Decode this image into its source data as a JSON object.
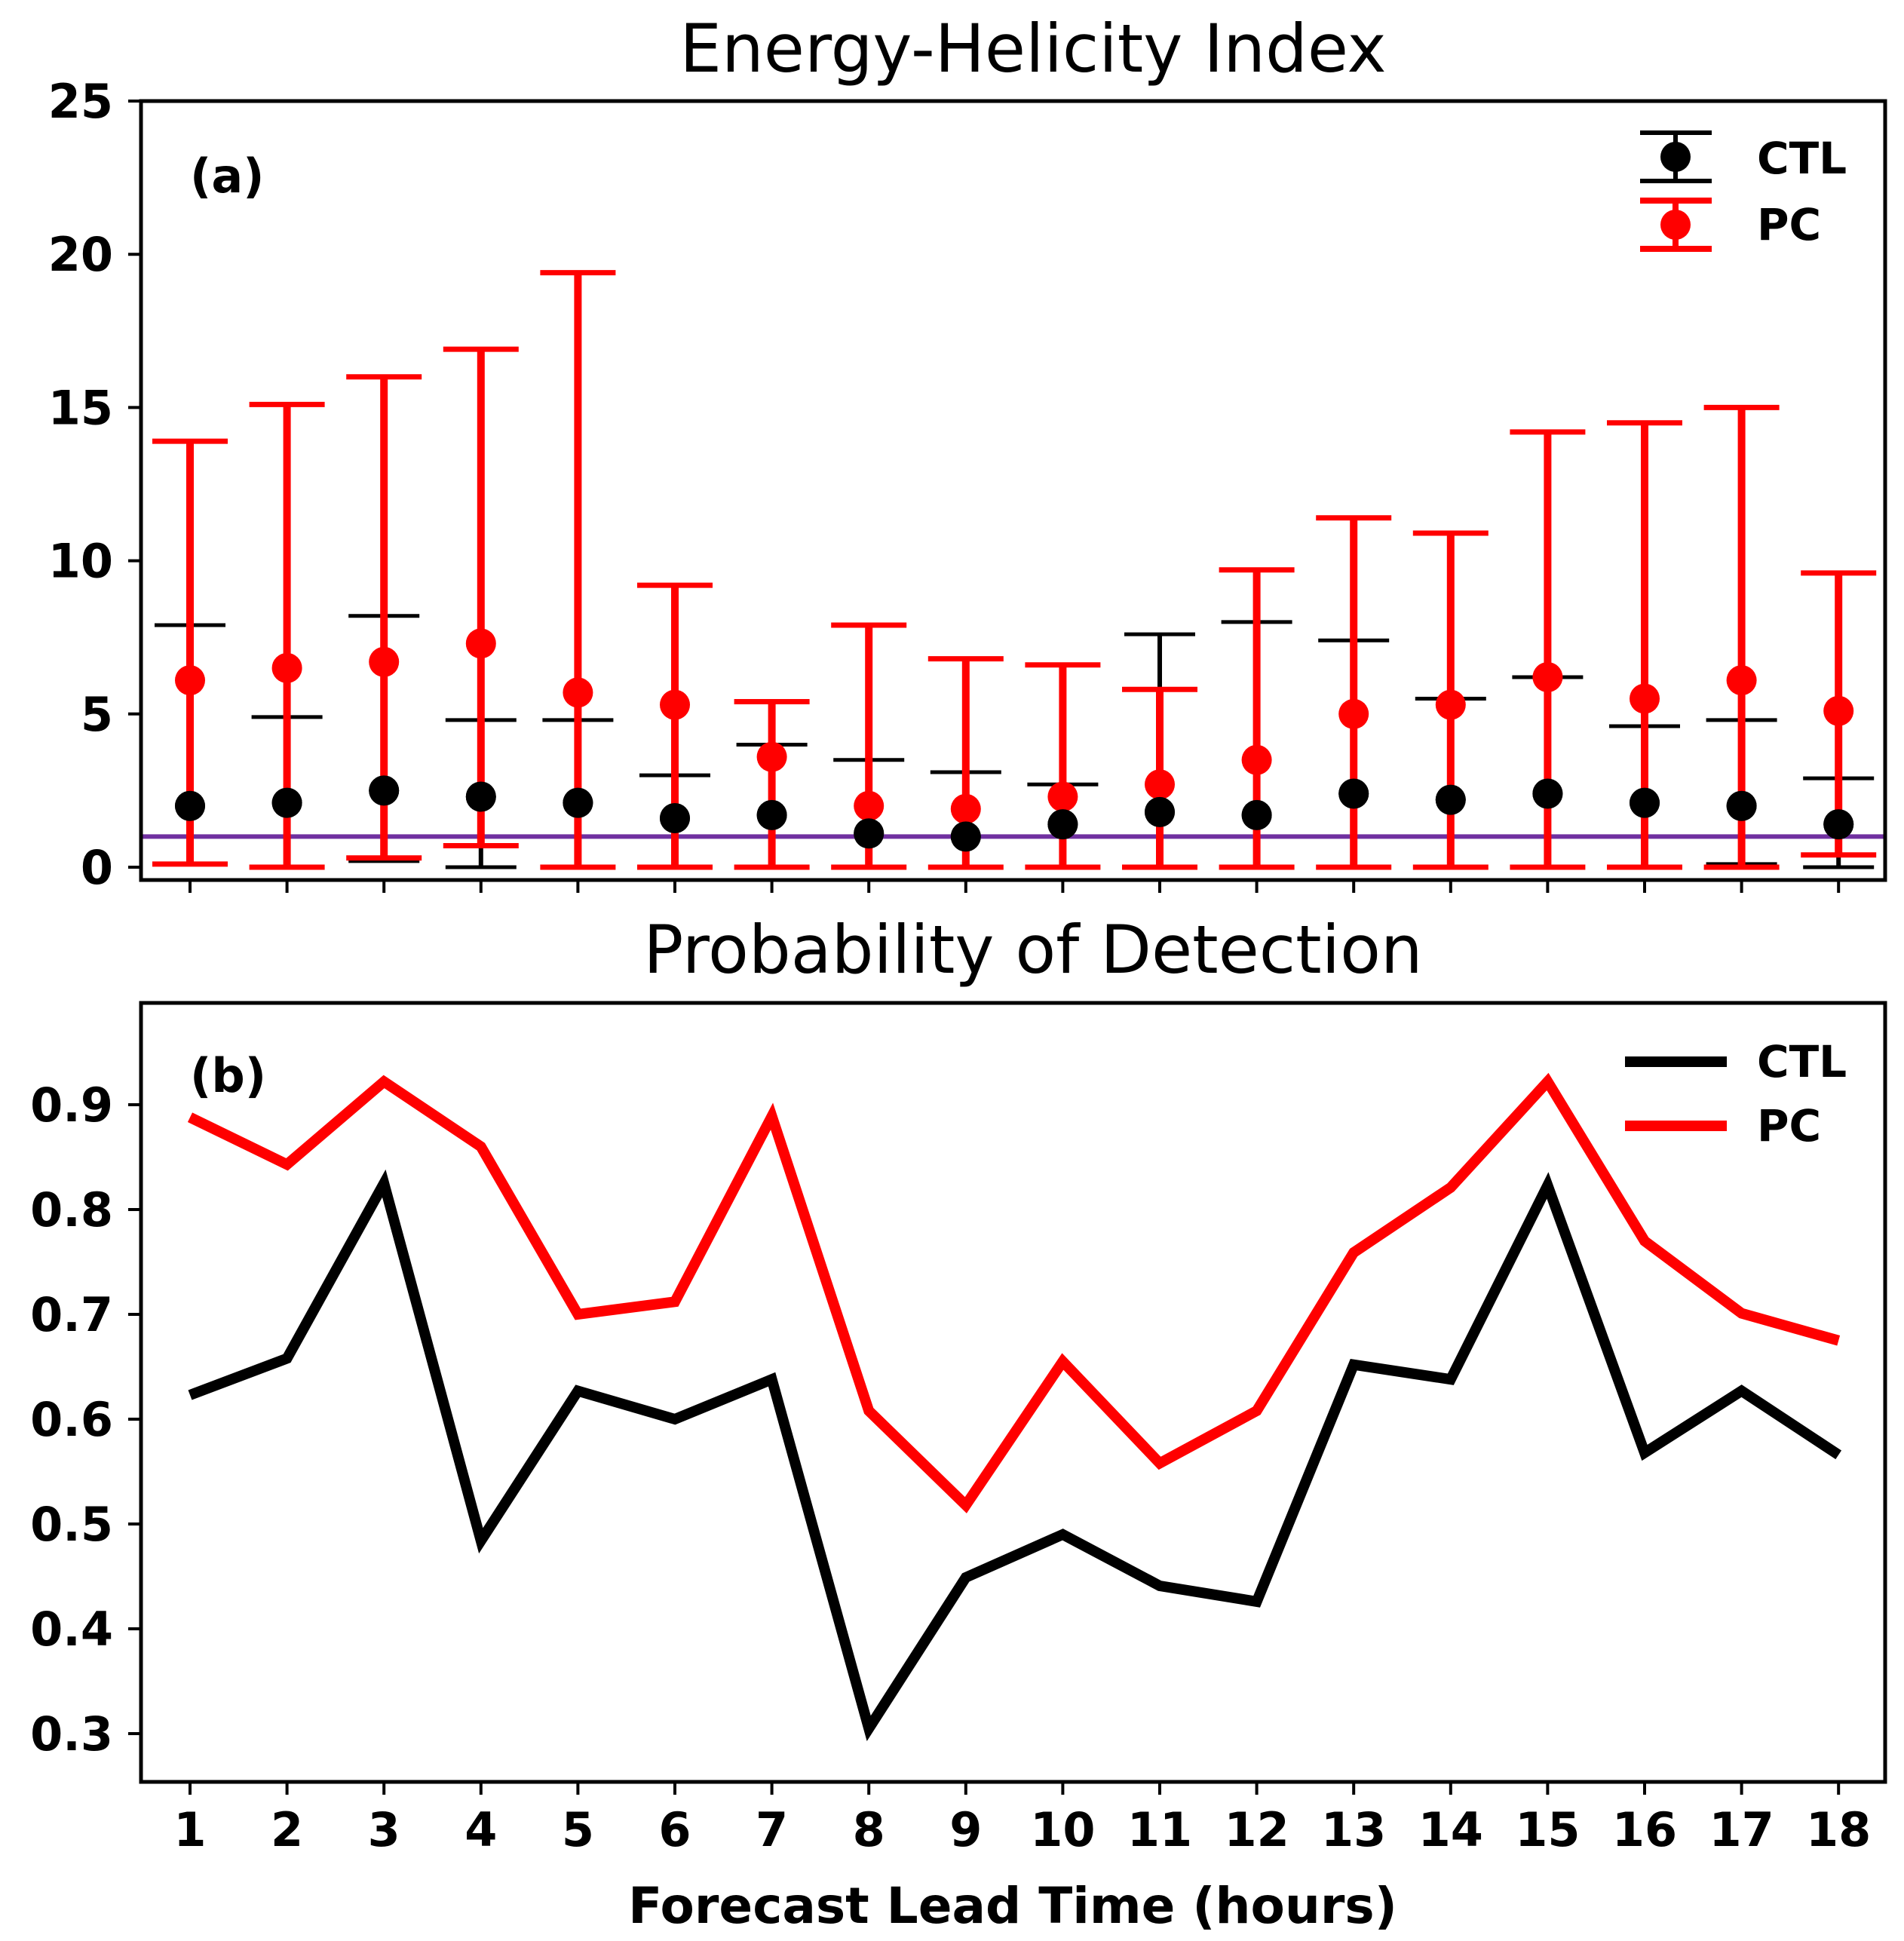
{
  "chart_data": [
    {
      "type": "errorbar",
      "panel_label": "(a)",
      "title": "Energy-Helicity Index",
      "xlabel": "",
      "ylabel": "",
      "ylim": [
        0,
        25
      ],
      "yticks": [
        "0",
        "5",
        "10",
        "15",
        "20",
        "25"
      ],
      "x": [
        1,
        2,
        3,
        4,
        5,
        6,
        7,
        8,
        9,
        10,
        11,
        12,
        13,
        14,
        15,
        16,
        17,
        18
      ],
      "reference_line": {
        "y": 1,
        "color": "#7030a0"
      },
      "series": [
        {
          "name": "CTL",
          "color": "#000000",
          "values": [
            2.0,
            2.1,
            2.5,
            2.3,
            2.1,
            1.6,
            1.7,
            1.1,
            1.0,
            1.4,
            1.8,
            1.7,
            2.4,
            2.2,
            2.4,
            2.1,
            2.0,
            1.4
          ],
          "lower": [
            0.1,
            0.0,
            0.2,
            0.0,
            0.0,
            0.0,
            0.0,
            0.0,
            0.0,
            0.0,
            0.0,
            0.0,
            0.0,
            0.0,
            0.0,
            0.0,
            0.1,
            0.0
          ],
          "upper": [
            7.9,
            4.9,
            8.2,
            4.8,
            4.8,
            3.0,
            4.0,
            3.5,
            3.1,
            2.7,
            7.6,
            8.0,
            7.4,
            5.5,
            6.2,
            4.6,
            4.8,
            2.9
          ]
        },
        {
          "name": "PC",
          "color": "#ff0000",
          "values": [
            6.1,
            6.5,
            6.7,
            7.3,
            5.7,
            5.3,
            3.6,
            2.0,
            1.9,
            2.3,
            2.7,
            3.5,
            5.0,
            5.3,
            6.2,
            5.5,
            6.1,
            5.1
          ],
          "lower": [
            0.1,
            0.0,
            0.3,
            0.7,
            0.0,
            0.0,
            0.0,
            0.0,
            0.0,
            0.0,
            0.0,
            0.0,
            0.0,
            0.0,
            0.0,
            0.0,
            0.0,
            0.4
          ],
          "upper": [
            13.9,
            15.1,
            16.0,
            16.9,
            19.4,
            9.2,
            5.4,
            7.9,
            6.8,
            6.6,
            5.8,
            9.7,
            11.4,
            10.9,
            14.2,
            14.5,
            15.0,
            9.6
          ]
        }
      ]
    },
    {
      "type": "line",
      "panel_label": "(b)",
      "title": "Probability of Detection",
      "xlabel": "Forecast Lead Time (hours)",
      "ylabel": "",
      "ylim": [
        0.275,
        1.0
      ],
      "yticks": [
        "0.3",
        "0.4",
        "0.5",
        "0.6",
        "0.7",
        "0.8",
        "0.9"
      ],
      "categories": [
        "1",
        "2",
        "3",
        "4",
        "5",
        "6",
        "7",
        "8",
        "9",
        "10",
        "11",
        "12",
        "13",
        "14",
        "15",
        "16",
        "17",
        "18"
      ],
      "x": [
        1,
        2,
        3,
        4,
        5,
        6,
        7,
        8,
        9,
        10,
        11,
        12,
        13,
        14,
        15,
        16,
        17,
        18
      ],
      "series": [
        {
          "name": "CTL",
          "color": "#000000",
          "values": [
            0.623,
            0.658,
            0.825,
            0.484,
            0.627,
            0.6,
            0.638,
            0.305,
            0.449,
            0.49,
            0.441,
            0.426,
            0.652,
            0.638,
            0.823,
            0.568,
            0.627,
            0.566
          ]
        },
        {
          "name": "PC",
          "color": "#ff0000",
          "values": [
            0.888,
            0.843,
            0.922,
            0.86,
            0.7,
            0.712,
            0.889,
            0.608,
            0.518,
            0.655,
            0.558,
            0.608,
            0.759,
            0.821,
            0.922,
            0.77,
            0.701,
            0.675
          ]
        }
      ]
    }
  ]
}
